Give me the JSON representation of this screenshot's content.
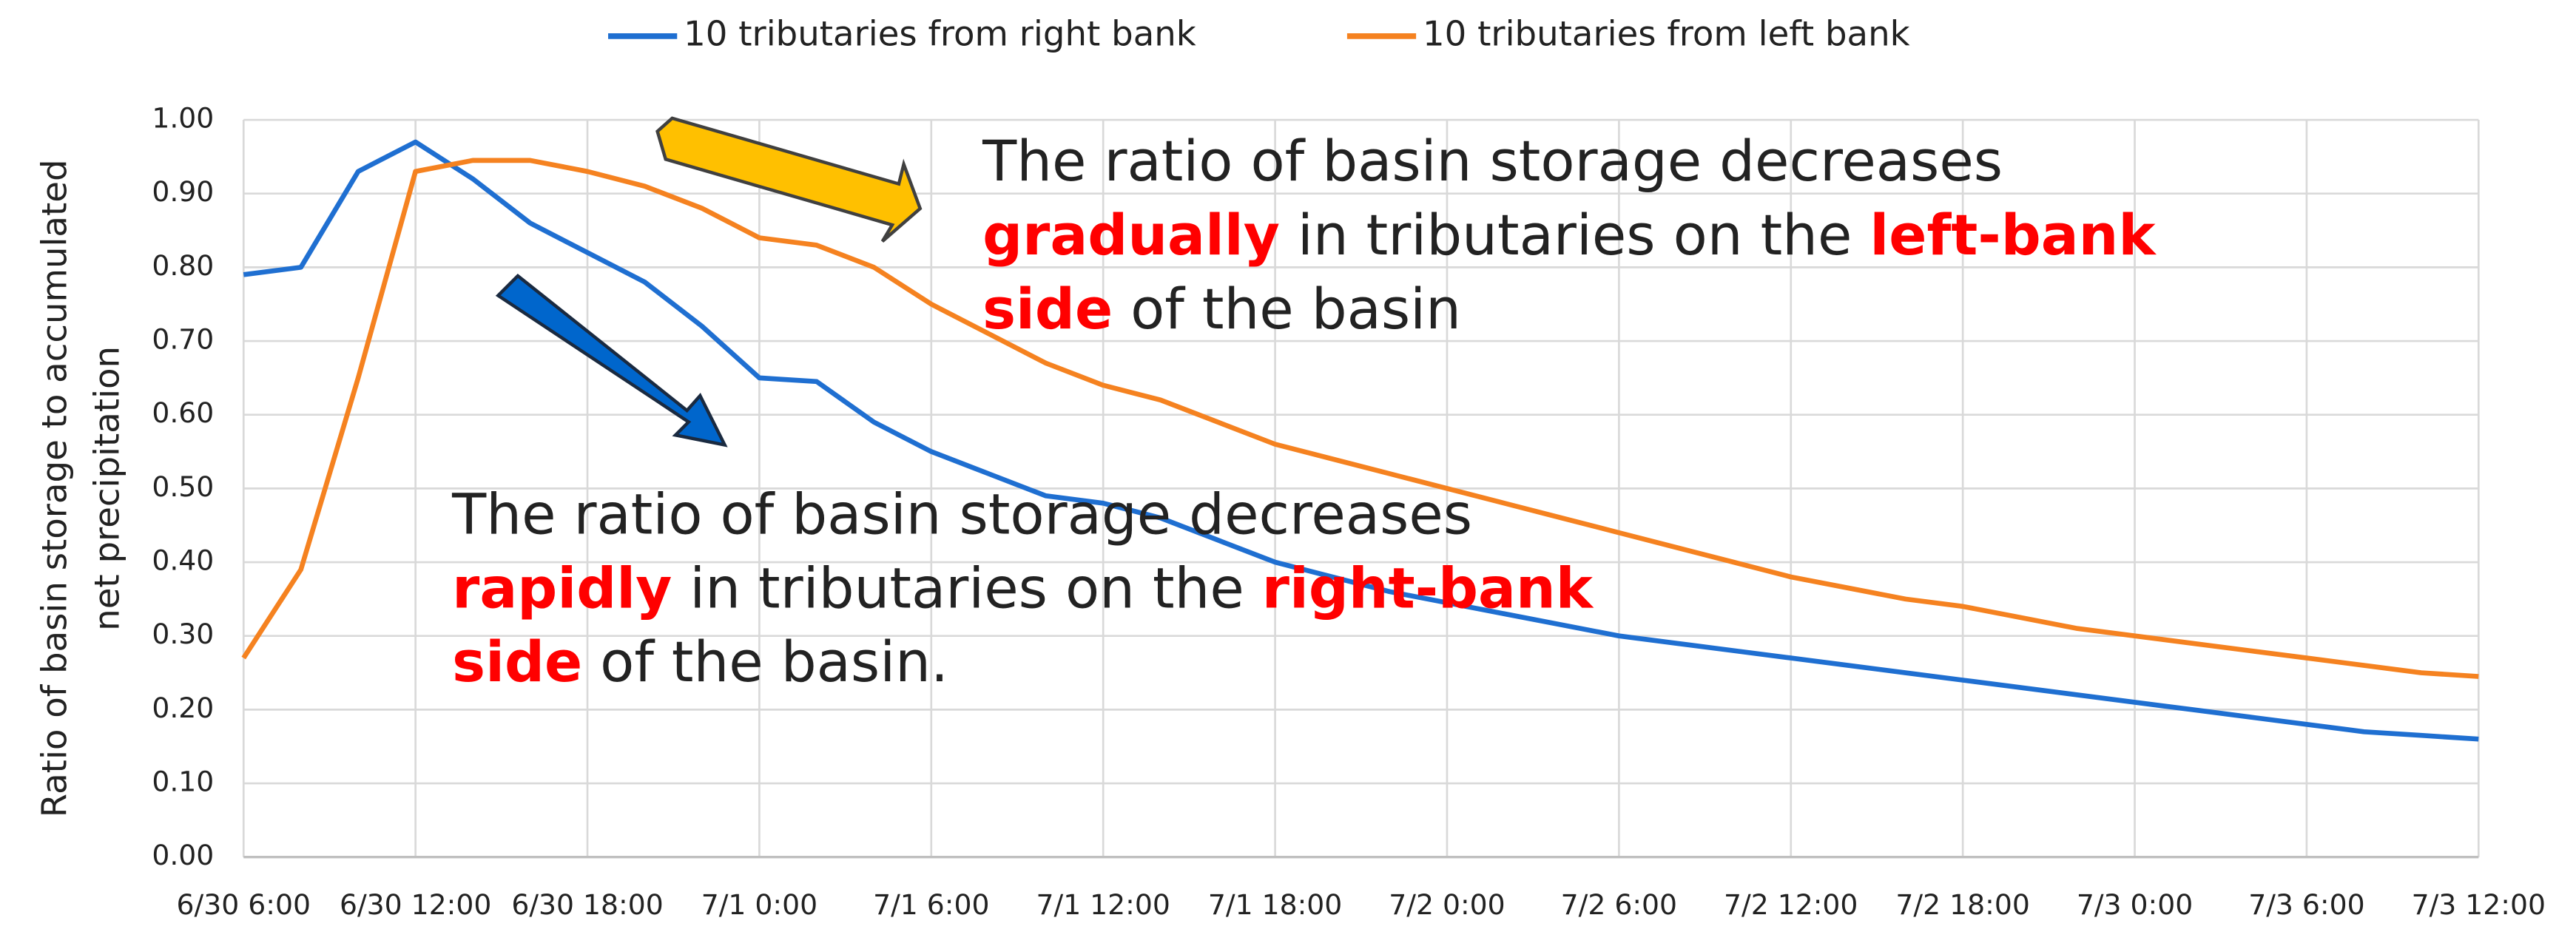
{
  "chart_data": {
    "type": "line",
    "legend": "top",
    "grid": true,
    "ylabel": [
      "Ratio of basin storage to accumulated",
      "net precipitation"
    ],
    "categories": [
      "6/30 6:00",
      null,
      null,
      "6/30 12:00",
      null,
      null,
      "6/30 18:00",
      null,
      null,
      "7/1 0:00",
      null,
      null,
      "7/1 6:00",
      null,
      null,
      "7/1 12:00",
      null,
      null,
      "7/1 18:00",
      null,
      null,
      "7/2 0:00",
      null,
      null,
      "7/2 6:00",
      null,
      null,
      "7/2 12:00",
      null,
      null,
      "7/2 18:00",
      null,
      null,
      "7/3 0:00",
      null,
      null,
      "7/3 6:00",
      null,
      null,
      "7/3 12:00"
    ],
    "ylim": [
      0,
      1
    ],
    "yticks": [
      {
        "value": 0,
        "label": "0.00"
      },
      {
        "value": 0.1,
        "label": "0.10"
      },
      {
        "value": 0.2,
        "label": "0.20"
      },
      {
        "value": 0.3,
        "label": "0.30"
      },
      {
        "value": 0.4,
        "label": "0.40"
      },
      {
        "value": 0.5,
        "label": "0.50"
      },
      {
        "value": 0.6,
        "label": "0.60"
      },
      {
        "value": 0.7,
        "label": "0.70"
      },
      {
        "value": 0.8,
        "label": "0.80"
      },
      {
        "value": 0.9,
        "label": "0.90"
      },
      {
        "value": 1,
        "label": "1.00"
      }
    ],
    "series": [
      {
        "name": "10 tributaries from right bank",
        "color": "#1f6fd1",
        "values": [
          0.79,
          0.8,
          0.93,
          0.97,
          0.92,
          0.86,
          0.82,
          0.78,
          0.72,
          0.65,
          0.645,
          0.59,
          0.55,
          0.52,
          0.49,
          0.48,
          0.46,
          0.43,
          0.4,
          0.38,
          0.36,
          0.345,
          0.33,
          0.315,
          0.3,
          0.29,
          0.28,
          0.27,
          0.26,
          0.25,
          0.24,
          0.23,
          0.22,
          0.21,
          0.2,
          0.19,
          0.18,
          0.17,
          0.165,
          0.16
        ]
      },
      {
        "name": "10 tributaries from left bank",
        "color": "#f58220",
        "values": [
          0.27,
          0.39,
          0.65,
          0.93,
          0.945,
          0.945,
          0.93,
          0.91,
          0.88,
          0.84,
          0.83,
          0.8,
          0.75,
          0.71,
          0.67,
          0.64,
          0.62,
          0.59,
          0.56,
          0.54,
          0.52,
          0.5,
          0.48,
          0.46,
          0.44,
          0.42,
          0.4,
          0.38,
          0.365,
          0.35,
          0.34,
          0.325,
          0.31,
          0.3,
          0.29,
          0.28,
          0.27,
          0.26,
          0.25,
          0.245
        ]
      }
    ],
    "annotations": [
      {
        "lines": [
          [
            {
              "text": "The ratio of basin storage decreases"
            }
          ],
          [
            {
              "text": "gradually",
              "color": "#ff0000",
              "bold": true
            },
            {
              "text": " in tributaries on the "
            },
            {
              "text": "left-bank",
              "color": "#ff0000",
              "bold": true
            }
          ],
          [
            {
              "text": "side",
              "color": "#ff0000",
              "bold": true
            },
            {
              "text": " of the basin"
            }
          ]
        ]
      },
      {
        "lines": [
          [
            {
              "text": "The ratio of basin storage decreases"
            }
          ],
          [
            {
              "text": "rapidly",
              "color": "#ff0000",
              "bold": true
            },
            {
              "text": " in tributaries on the "
            },
            {
              "text": "right-bank",
              "color": "#ff0000",
              "bold": true
            }
          ],
          [
            {
              "text": "side",
              "color": "#ff0000",
              "bold": true
            },
            {
              "text": " of the basin."
            }
          ]
        ]
      }
    ]
  }
}
